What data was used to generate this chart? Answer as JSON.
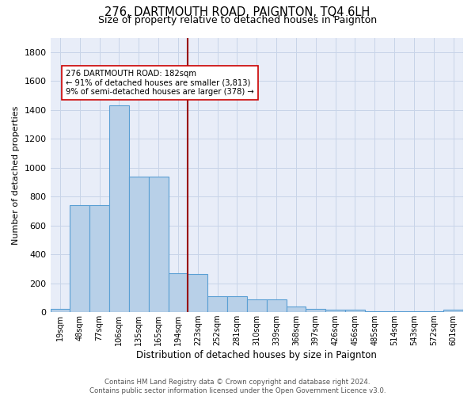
{
  "title": "276, DARTMOUTH ROAD, PAIGNTON, TQ4 6LH",
  "subtitle": "Size of property relative to detached houses in Paignton",
  "xlabel": "Distribution of detached houses by size in Paignton",
  "ylabel": "Number of detached properties",
  "bar_labels": [
    "19sqm",
    "48sqm",
    "77sqm",
    "106sqm",
    "135sqm",
    "165sqm",
    "194sqm",
    "223sqm",
    "252sqm",
    "281sqm",
    "310sqm",
    "339sqm",
    "368sqm",
    "397sqm",
    "426sqm",
    "456sqm",
    "485sqm",
    "514sqm",
    "543sqm",
    "572sqm",
    "601sqm"
  ],
  "bar_values": [
    22,
    740,
    740,
    1430,
    940,
    940,
    270,
    265,
    110,
    110,
    90,
    90,
    40,
    22,
    15,
    15,
    5,
    5,
    5,
    5,
    18
  ],
  "bar_color": "#b8d0e8",
  "bar_edge_color": "#5a9fd4",
  "vline_x": 6.5,
  "vline_color": "#990000",
  "ylim": [
    0,
    1900
  ],
  "yticks": [
    0,
    200,
    400,
    600,
    800,
    1000,
    1200,
    1400,
    1600,
    1800
  ],
  "grid_color": "#c8d4e8",
  "bg_color": "#e8edf8",
  "footer": "Contains HM Land Registry data © Crown copyright and database right 2024.\nContains public sector information licensed under the Open Government Licence v3.0.",
  "annotation_line1": "276 DARTMOUTH ROAD: 182sqm",
  "annotation_line2": "← 91% of detached houses are smaller (3,813)",
  "annotation_line3": "9% of semi-detached houses are larger (378) →",
  "annotation_box_color": "#ffffff",
  "annotation_box_edge": "#cc0000"
}
